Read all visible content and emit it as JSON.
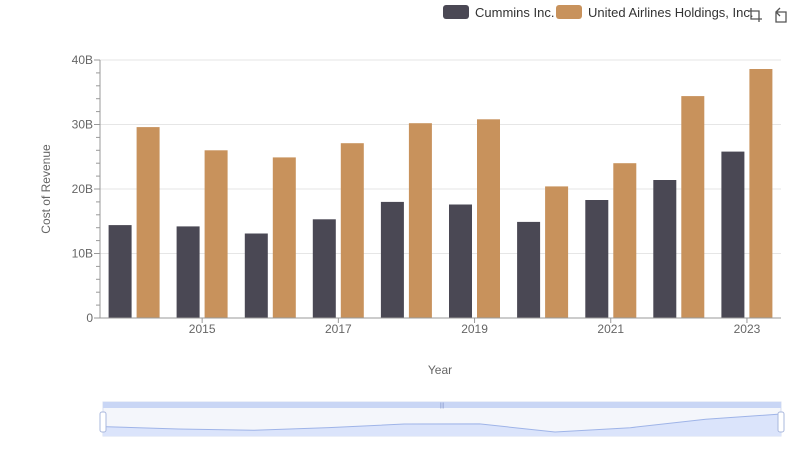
{
  "colors": {
    "series_a": "#4a4854",
    "series_b": "#c8925c",
    "grid": "#e6e6e6",
    "zoom_fill": "#dbe4fb",
    "zoom_line": "#9fb4e8"
  },
  "toolbar": {
    "icons": [
      "crop-icon",
      "restore-icon"
    ]
  },
  "chart_data": {
    "type": "bar",
    "x": [
      2014,
      2015,
      2016,
      2017,
      2018,
      2019,
      2020,
      2021,
      2022,
      2023
    ],
    "x_tick_labels": [
      "2015",
      "2017",
      "2019",
      "2021",
      "2023"
    ],
    "y_tick_labels": [
      "0",
      "10B",
      "20B",
      "30B",
      "40B"
    ],
    "xlabel": "Year",
    "ylabel": "Cost of Revenue",
    "ylim": [
      0,
      40000000000
    ],
    "grid": true,
    "legend_position": "top-right",
    "series": [
      {
        "name": "Cummins Inc.",
        "values": [
          14400000000,
          14200000000,
          13100000000,
          15300000000,
          18000000000,
          17600000000,
          14900000000,
          18300000000,
          21400000000,
          25800000000
        ]
      },
      {
        "name": "United Airlines Holdings, Inc.",
        "values": [
          29600000000,
          26000000000,
          24900000000,
          27100000000,
          30200000000,
          30800000000,
          20400000000,
          24000000000,
          34400000000,
          38600000000
        ]
      }
    ]
  }
}
